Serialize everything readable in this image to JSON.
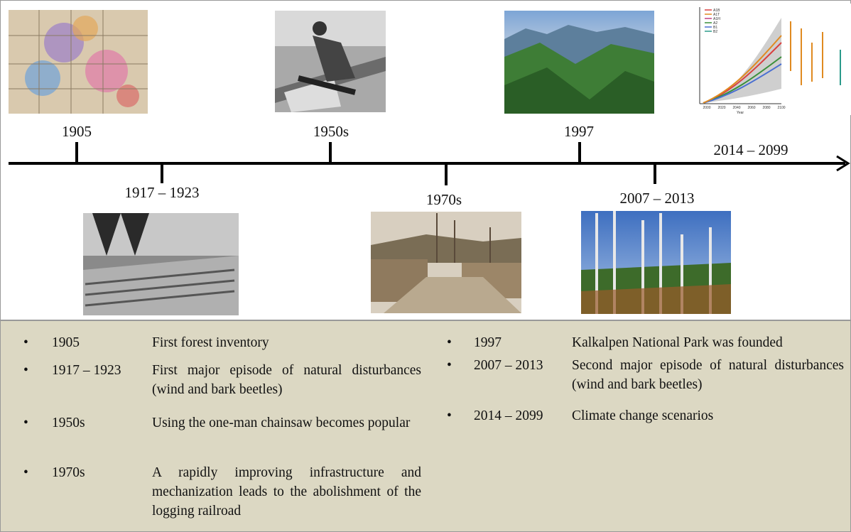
{
  "timeline": {
    "events": [
      {
        "label": "1905"
      },
      {
        "label": "1917 – 1923"
      },
      {
        "label": "1950s"
      },
      {
        "label": "1970s"
      },
      {
        "label": "1997"
      },
      {
        "label": "2007 – 2013"
      },
      {
        "label": "2014 – 2099"
      }
    ]
  },
  "thumbnail": {
    "legend": [
      "A1B",
      "A1T",
      "A1FI",
      "A2",
      "B1",
      "B2"
    ],
    "x_axis": "Year",
    "xticks": [
      2000,
      2020,
      2040,
      2060,
      2080,
      2100
    ]
  },
  "panel": {
    "left": [
      {
        "year": "1905",
        "text": "First forest inventory"
      },
      {
        "year": "1917 – 1923",
        "text": "First major episode of natural disturbances (wind and bark beetles)"
      },
      {
        "year": "1950s",
        "text": "Using the one-man chainsaw becomes popular"
      },
      {
        "year": "1970s",
        "text": "A rapidly improving infrastructure and mechanization leads to the abolishment of the logging railroad"
      }
    ],
    "right": [
      {
        "year": "1997",
        "text": "Kalkalpen National Park was founded"
      },
      {
        "year": "2007 – 2013",
        "text": "Second major episode of natural disturbances (wind and bark beetles)"
      },
      {
        "year": "2014 – 2099",
        "text": "Climate change scenarios"
      }
    ]
  }
}
